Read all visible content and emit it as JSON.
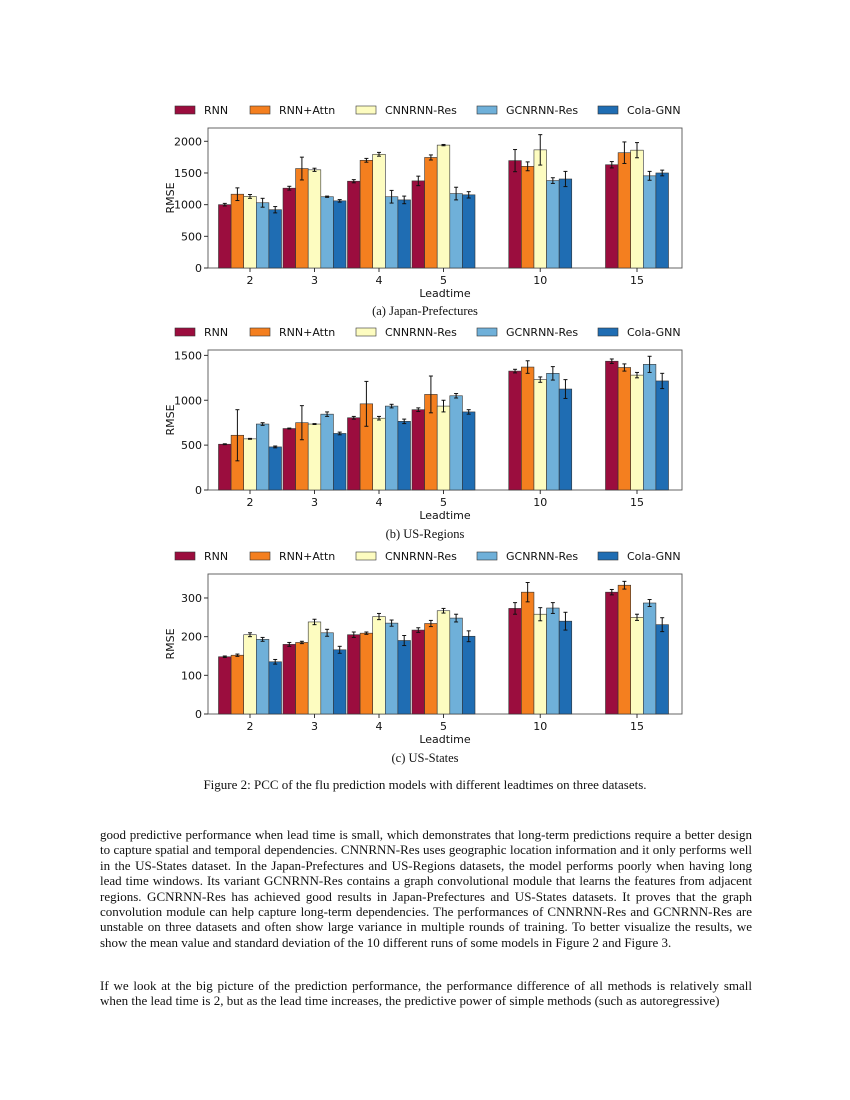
{
  "chart_data": [
    {
      "type": "bar",
      "caption": "(a) Japan-Prefectures",
      "xlabel": "Leadtime",
      "ylabel": "RMSE",
      "categories": [
        "2",
        "3",
        "4",
        "5",
        "10",
        "15"
      ],
      "ylim": [
        0,
        2210
      ],
      "yticks": [
        0,
        500,
        1000,
        1500,
        2000
      ],
      "grid": false,
      "legend": "top",
      "series": [
        {
          "name": "RNN",
          "color": "#9b0d3e",
          "values": [
            1000,
            1260,
            1370,
            1375,
            1695,
            1630
          ],
          "errors": [
            20,
            30,
            25,
            75,
            175,
            50
          ]
        },
        {
          "name": "RNN+Attn",
          "color": "#f47f1f",
          "values": [
            1165,
            1570,
            1700,
            1745,
            1605,
            1820
          ],
          "errors": [
            100,
            180,
            30,
            40,
            70,
            170
          ]
        },
        {
          "name": "CNNRNN-Res",
          "color": "#fdfcc0",
          "values": [
            1130,
            1550,
            1795,
            1940,
            1865,
            1860
          ],
          "errors": [
            30,
            25,
            30,
            10,
            240,
            120
          ]
        },
        {
          "name": "GCNRNN-Res",
          "color": "#6fb0d9",
          "values": [
            1030,
            1125,
            1125,
            1175,
            1380,
            1455
          ],
          "errors": [
            70,
            10,
            100,
            100,
            45,
            70
          ]
        },
        {
          "name": "Cola-GNN",
          "color": "#1f6db3",
          "values": [
            920,
            1060,
            1075,
            1155,
            1405,
            1500
          ],
          "errors": [
            50,
            20,
            60,
            50,
            120,
            45
          ]
        }
      ]
    },
    {
      "type": "bar",
      "caption": "(b) US-Regions",
      "xlabel": "Leadtime",
      "ylabel": "RMSE",
      "categories": [
        "2",
        "3",
        "4",
        "5",
        "10",
        "15"
      ],
      "ylim": [
        0,
        1560
      ],
      "yticks": [
        0,
        500,
        1000,
        1500
      ],
      "grid": false,
      "legend": "top",
      "series": [
        {
          "name": "RNN",
          "color": "#9b0d3e",
          "values": [
            510,
            685,
            805,
            895,
            1325,
            1435
          ],
          "errors": [
            5,
            5,
            15,
            20,
            20,
            25
          ]
        },
        {
          "name": "RNN+Attn",
          "color": "#f47f1f",
          "values": [
            610,
            750,
            960,
            1065,
            1370,
            1365
          ],
          "errors": [
            285,
            190,
            250,
            205,
            70,
            40
          ]
        },
        {
          "name": "CNNRNN-Res",
          "color": "#fdfcc0",
          "values": [
            570,
            735,
            800,
            935,
            1230,
            1280
          ],
          "errors": [
            5,
            5,
            20,
            65,
            30,
            30
          ]
        },
        {
          "name": "GCNRNN-Res",
          "color": "#6fb0d9",
          "values": [
            735,
            845,
            935,
            1050,
            1300,
            1400
          ],
          "errors": [
            15,
            25,
            20,
            25,
            75,
            90
          ]
        },
        {
          "name": "Cola-GNN",
          "color": "#1f6db3",
          "values": [
            480,
            630,
            765,
            870,
            1125,
            1215
          ],
          "errors": [
            10,
            15,
            25,
            25,
            105,
            85
          ]
        }
      ]
    },
    {
      "type": "bar",
      "caption": "(c) US-States",
      "xlabel": "Leadtime",
      "ylabel": "RMSE",
      "categories": [
        "2",
        "3",
        "4",
        "5",
        "10",
        "15"
      ],
      "ylim": [
        0,
        362
      ],
      "yticks": [
        0,
        100,
        200,
        300
      ],
      "grid": false,
      "legend": "top",
      "series": [
        {
          "name": "RNN",
          "color": "#9b0d3e",
          "values": [
            148,
            180,
            205,
            217,
            273,
            315
          ],
          "errors": [
            2,
            5,
            7,
            6,
            15,
            7
          ]
        },
        {
          "name": "RNN+Attn",
          "color": "#f47f1f",
          "values": [
            152,
            185,
            209,
            234,
            315,
            333
          ],
          "errors": [
            3,
            3,
            3,
            8,
            25,
            10
          ]
        },
        {
          "name": "CNNRNN-Res",
          "color": "#fdfcc0",
          "values": [
            205,
            238,
            252,
            267,
            258,
            250
          ],
          "errors": [
            5,
            7,
            8,
            6,
            17,
            8
          ]
        },
        {
          "name": "GCNRNN-Res",
          "color": "#6fb0d9",
          "values": [
            193,
            210,
            235,
            248,
            274,
            287
          ],
          "errors": [
            5,
            9,
            8,
            10,
            14,
            9
          ]
        },
        {
          "name": "Cola-GNN",
          "color": "#1f6db3",
          "values": [
            135,
            166,
            190,
            201,
            240,
            231
          ],
          "errors": [
            6,
            9,
            13,
            14,
            23,
            18
          ]
        }
      ]
    }
  ],
  "figure_caption": "Figure 2: PCC of the flu prediction models with different leadtimes on three datasets.",
  "paragraphs": [
    "good predictive performance when lead time is small, which demonstrates that long-term predictions require a better design to capture spatial and temporal dependencies. CNNRNN-Res uses geographic location information and it only performs well in the US-States dataset. In the Japan-Prefectures and US-Regions datasets, the model performs poorly when having long lead time windows. Its variant GCNRNN-Res contains a graph convolutional module that learns the features from adjacent regions. GCNRNN-Res has achieved good results in Japan-Prefectures and US-States datasets. It proves that the graph convolution module can help capture long-term dependencies. The performances of CNNRNN-Res and GCNRNN-Res are unstable on three datasets and often show large variance in multiple rounds of training. To better visualize the results, we show the mean value and standard deviation of the 10 different runs of some models in Figure 2 and Figure 3.",
    "If we look at the big picture of the prediction performance, the performance difference of all methods is relatively small when the lead time is 2, but as the lead time increases, the predictive power of simple methods (such as autoregressive)"
  ]
}
